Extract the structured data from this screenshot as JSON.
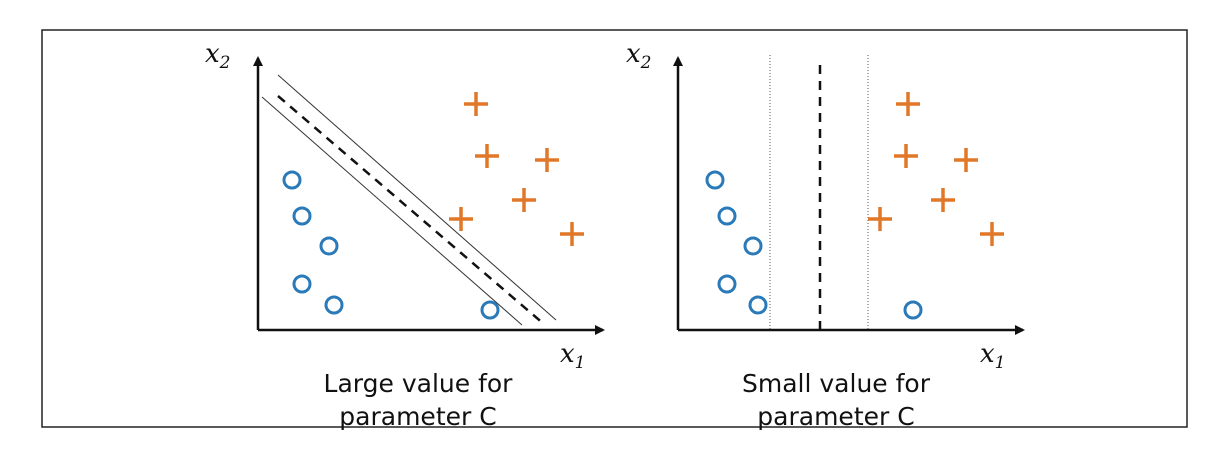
{
  "panels": [
    {
      "y_label": {
        "letter": "x",
        "subscript": "2"
      },
      "x_label": {
        "letter": "x",
        "subscript": "1"
      },
      "caption": [
        "Large value for",
        "parameter C"
      ]
    },
    {
      "y_label": {
        "letter": "x",
        "subscript": "2"
      },
      "x_label": {
        "letter": "x",
        "subscript": "1"
      },
      "caption": [
        "Small value for",
        "parameter C"
      ]
    }
  ]
}
